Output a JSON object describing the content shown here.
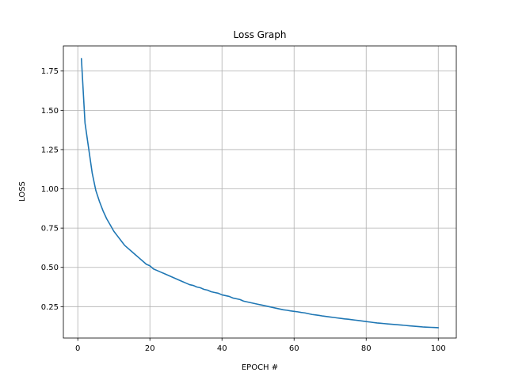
{
  "chart_data": {
    "type": "line",
    "title": "Loss Graph",
    "xlabel": "EPOCH #",
    "ylabel": "LOSS",
    "xlim": [
      -4,
      105
    ],
    "ylim": [
      0.05,
      1.91
    ],
    "grid": true,
    "x_ticks": [
      0,
      20,
      40,
      60,
      80,
      100
    ],
    "y_ticks": [
      0.25,
      0.5,
      0.75,
      1.0,
      1.25,
      1.5,
      1.75
    ],
    "series": [
      {
        "color": "#1f77b4",
        "x": [
          1,
          2,
          3,
          4,
          5,
          6,
          7,
          8,
          9,
          10,
          11,
          12,
          13,
          14,
          15,
          16,
          17,
          18,
          19,
          20,
          21,
          22,
          23,
          24,
          25,
          26,
          27,
          28,
          29,
          30,
          31,
          32,
          33,
          34,
          35,
          36,
          37,
          38,
          39,
          40,
          41,
          42,
          43,
          44,
          45,
          46,
          47,
          48,
          49,
          50,
          51,
          52,
          53,
          54,
          55,
          56,
          57,
          58,
          59,
          60,
          61,
          62,
          63,
          64,
          65,
          66,
          67,
          68,
          69,
          70,
          71,
          72,
          73,
          74,
          75,
          76,
          77,
          78,
          79,
          80,
          81,
          82,
          83,
          84,
          85,
          86,
          87,
          88,
          89,
          90,
          91,
          92,
          93,
          94,
          95,
          96,
          97,
          98,
          99,
          100
        ],
        "values": [
          1.83,
          1.42,
          1.26,
          1.1,
          0.99,
          0.92,
          0.86,
          0.81,
          0.77,
          0.73,
          0.7,
          0.67,
          0.64,
          0.62,
          0.6,
          0.58,
          0.56,
          0.54,
          0.52,
          0.51,
          0.49,
          0.48,
          0.47,
          0.46,
          0.45,
          0.44,
          0.43,
          0.42,
          0.41,
          0.4,
          0.39,
          0.385,
          0.375,
          0.37,
          0.36,
          0.355,
          0.345,
          0.34,
          0.335,
          0.325,
          0.32,
          0.315,
          0.305,
          0.3,
          0.295,
          0.285,
          0.28,
          0.275,
          0.27,
          0.265,
          0.26,
          0.255,
          0.25,
          0.245,
          0.24,
          0.235,
          0.23,
          0.227,
          0.223,
          0.22,
          0.217,
          0.213,
          0.21,
          0.205,
          0.2,
          0.197,
          0.194,
          0.19,
          0.187,
          0.184,
          0.181,
          0.178,
          0.175,
          0.172,
          0.17,
          0.167,
          0.164,
          0.161,
          0.158,
          0.155,
          0.152,
          0.149,
          0.146,
          0.144,
          0.142,
          0.14,
          0.138,
          0.136,
          0.134,
          0.132,
          0.13,
          0.128,
          0.126,
          0.124,
          0.122,
          0.12,
          0.119,
          0.118,
          0.117,
          0.116
        ]
      }
    ]
  }
}
